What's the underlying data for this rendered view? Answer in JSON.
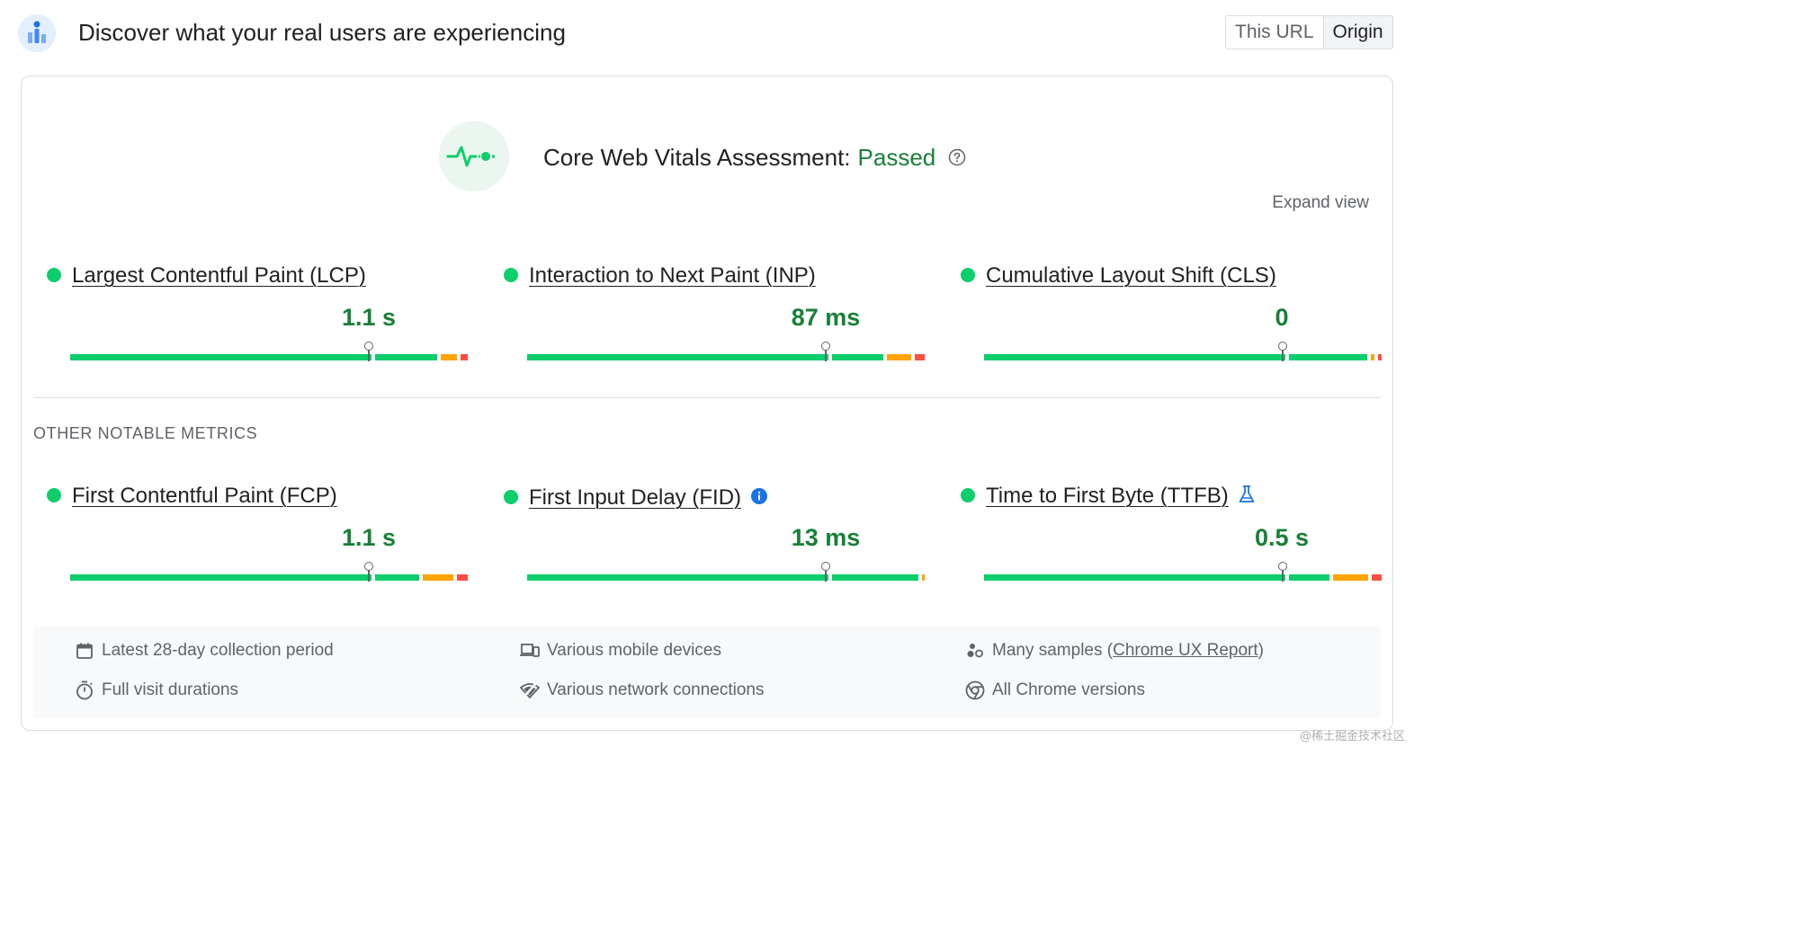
{
  "header": {
    "title": "Discover what your real users are experiencing",
    "toggle": {
      "options": [
        "This URL",
        "Origin"
      ],
      "selected": "Origin"
    }
  },
  "assessment": {
    "label": "Core Web Vitals Assessment: ",
    "status": "Passed",
    "expand_label": "Expand view"
  },
  "core_metrics": [
    {
      "name": "Largest Contentful Paint (LCP)",
      "value": "1.1 s",
      "rating": "good",
      "good_fraction": 0.939,
      "ni_fraction": 0.043,
      "poor_fraction": 0.018,
      "percentile_position": 0.75
    },
    {
      "name": "Interaction to Next Paint (INP)",
      "value": "87 ms",
      "rating": "good",
      "good_fraction": 0.913,
      "ni_fraction": 0.061,
      "poor_fraction": 0.026,
      "percentile_position": 0.75
    },
    {
      "name": "Cumulative Layout Shift (CLS)",
      "value": "0",
      "rating": "good",
      "good_fraction": 0.982,
      "ni_fraction": 0.009,
      "poor_fraction": 0.009,
      "percentile_position": 0.75
    }
  ],
  "other_section_title": "OTHER NOTABLE METRICS",
  "other_metrics": [
    {
      "name": "First Contentful Paint (FCP)",
      "value": "1.1 s",
      "rating": "good",
      "good_fraction": 0.895,
      "ni_fraction": 0.077,
      "poor_fraction": 0.028,
      "percentile_position": 0.75,
      "badge": ""
    },
    {
      "name": "First Input Delay (FID)",
      "value": "13 ms",
      "rating": "good",
      "good_fraction": 0.993,
      "ni_fraction": 0.007,
      "poor_fraction": 0.0,
      "percentile_position": 0.75,
      "badge": "info-icon"
    },
    {
      "name": "Time to First Byte (TTFB)",
      "value": "0.5 s",
      "rating": "good",
      "good_fraction": 0.884,
      "ni_fraction": 0.091,
      "poor_fraction": 0.025,
      "percentile_position": 0.75,
      "badge": "experimental-flask-icon"
    }
  ],
  "footer": {
    "items": [
      {
        "icon": "calendar-icon",
        "text": "Latest 28-day collection period"
      },
      {
        "icon": "devices-icon",
        "text": "Various mobile devices"
      },
      {
        "icon": "samples-icon",
        "text_before": "Many samples (",
        "link": "Chrome UX Report",
        "text_after": ")"
      },
      {
        "icon": "stopwatch-icon",
        "text": "Full visit durations"
      },
      {
        "icon": "network-icon",
        "text": "Various network connections"
      },
      {
        "icon": "chrome-icon",
        "text": "All Chrome versions"
      }
    ]
  },
  "watermark": "@稀土掘金技术社区",
  "colors": {
    "good": "#0cce6b",
    "needs_improvement": "#ffa400",
    "poor": "#ff4e42",
    "passed_text": "#188038",
    "metric_value": "#188038",
    "link_blue": "#1a73e8"
  }
}
